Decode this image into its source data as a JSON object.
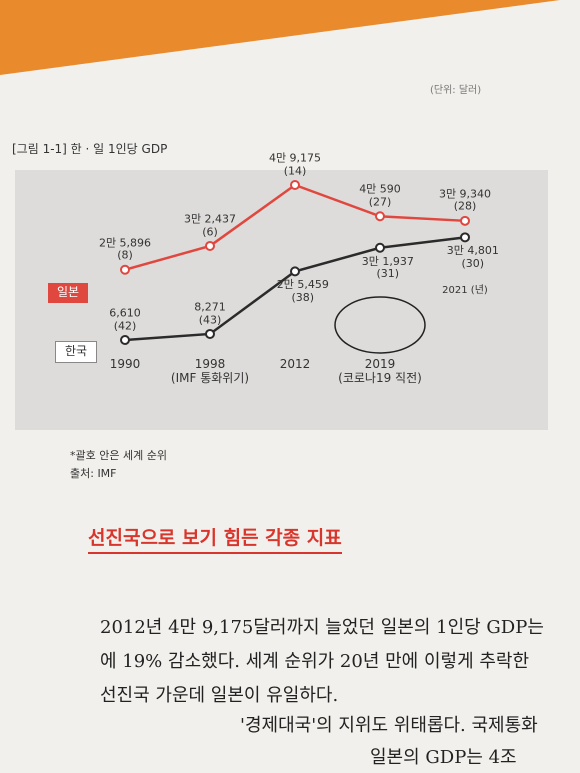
{
  "chart_data": {
    "type": "line",
    "title": "[그림 1-1] 한 · 일 1인당 GDP",
    "unit": "(단위: 달러)",
    "categories": [
      "1990",
      "1998\n(IMF 통화위기)",
      "2012",
      "2019\n(코로나19 직전)",
      "2021 (년)"
    ],
    "series": [
      {
        "name": "일본",
        "color": "#e0473f",
        "values": [
          25896,
          32437,
          49175,
          40590,
          39340
        ],
        "value_labels": [
          "2만 5,896\n(8)",
          "3만 2,437\n(6)",
          "4만 9,175\n(14)",
          "4만 590\n(27)",
          "3만 9,340\n(28)"
        ]
      },
      {
        "name": "한국",
        "color": "#2b2b2b",
        "values": [
          6610,
          8271,
          25459,
          31937,
          34801
        ],
        "value_labels": [
          "6,610\n(42)",
          "8,271\n(43)",
          "2만 5,459\n(38)",
          "3만 1,937\n(31)",
          "3만 4,801\n(30)"
        ]
      }
    ],
    "notes": [
      "*괄호 안은 세계 순위",
      "출처: IMF"
    ]
  },
  "section": {
    "heading": "선진국으로 보기 힘든 각종 지표",
    "lines": [
      "2012년 4만 9,175달러까지 늘었던 일본의 1인당 GDP는",
      "에 19% 감소했다. 세계 순위가 20년 만에 이렇게 추락한",
      "선진국 가운데 일본이 유일하다.",
      "'경제대국'의 지위도 위태롭다. 국제통화",
      "일본의 GDP는 4조"
    ]
  }
}
